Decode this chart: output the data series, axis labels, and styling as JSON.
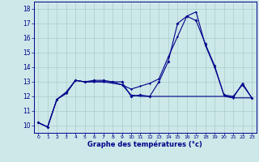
{
  "title": "Graphe des températures (°c)",
  "xlim": [
    -0.5,
    23.5
  ],
  "ylim": [
    9.5,
    18.5
  ],
  "y_ticks": [
    10,
    11,
    12,
    13,
    14,
    15,
    16,
    17,
    18
  ],
  "x_ticks": [
    0,
    1,
    2,
    3,
    4,
    5,
    6,
    7,
    8,
    9,
    10,
    11,
    12,
    13,
    14,
    15,
    16,
    17,
    18,
    19,
    20,
    21,
    22,
    23
  ],
  "bg_color": "#cce8e8",
  "line_color": "#00008b",
  "grid_color": "#aacccc",
  "line_peak_x": [
    0,
    1,
    2,
    3,
    4,
    5,
    6,
    7,
    8,
    9,
    10,
    11,
    12,
    13,
    14,
    15,
    16,
    17,
    18,
    19,
    20,
    21,
    22,
    23
  ],
  "line_peak_y": [
    10.2,
    9.9,
    11.8,
    12.3,
    13.1,
    13.0,
    13.1,
    13.1,
    13.0,
    13.0,
    12.0,
    12.1,
    12.0,
    13.0,
    14.4,
    17.0,
    17.5,
    17.2,
    15.6,
    14.1,
    12.1,
    12.0,
    12.8,
    11.9
  ],
  "line_min_x": [
    0,
    1,
    2,
    3,
    4,
    5,
    6,
    7,
    8,
    9,
    10,
    11,
    12,
    13,
    14,
    15,
    16,
    17,
    18,
    19,
    20,
    21,
    22,
    23
  ],
  "line_min_y": [
    10.2,
    9.9,
    11.8,
    12.2,
    13.1,
    13.0,
    13.0,
    13.0,
    12.9,
    12.8,
    12.1,
    12.0,
    12.0,
    12.0,
    12.0,
    12.0,
    12.0,
    12.0,
    12.0,
    12.0,
    12.0,
    11.9,
    11.9,
    11.9
  ],
  "line_cur_x": [
    0,
    1,
    2,
    3,
    4,
    5,
    6,
    7,
    8,
    9,
    10,
    11,
    12,
    13,
    14,
    15,
    16,
    17,
    18,
    19,
    20,
    21,
    22,
    23
  ],
  "line_cur_y": [
    10.2,
    9.9,
    11.8,
    12.2,
    13.1,
    13.0,
    13.0,
    13.0,
    13.0,
    12.8,
    12.5,
    12.7,
    12.9,
    13.2,
    14.7,
    16.1,
    17.5,
    17.8,
    15.5,
    14.0,
    12.1,
    11.9,
    12.9,
    11.9
  ]
}
